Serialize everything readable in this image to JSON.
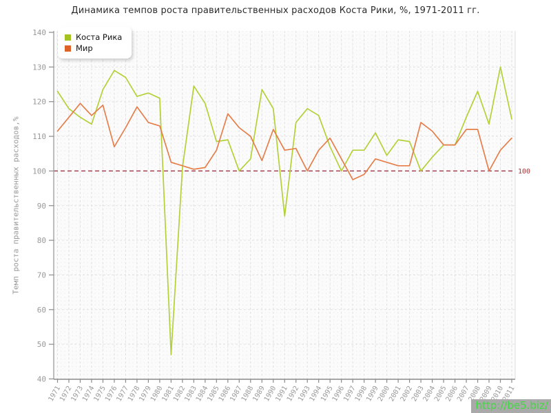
{
  "title": "Динамика темпов роста правительственных расходов Коста Рики, %, 1971-2011 гг.",
  "watermark": {
    "text": "http://be5.biz/",
    "bg_color": "#a9a9a9",
    "text_color": "#3edc3e"
  },
  "chart_data": {
    "type": "line",
    "title": "Динамика темпов роста правительственных расходов Коста Рики, %, 1971-2011 гг.",
    "xlabel": "",
    "ylabel": "Темп роста правительственных расходов,%",
    "ylim": [
      40,
      140
    ],
    "yticks": [
      40,
      50,
      60,
      70,
      80,
      90,
      100,
      110,
      120,
      130,
      140
    ],
    "grid": true,
    "legend_position": "top-left",
    "reference_line": {
      "value": 100,
      "label": "100",
      "color": "#9b2335",
      "label_color": "#a83030"
    },
    "categories": [
      "1971",
      "1972",
      "1973",
      "1974",
      "1975",
      "1976",
      "1977",
      "1978",
      "1979",
      "1980",
      "1981",
      "1982",
      "1983",
      "1984",
      "1985",
      "1986",
      "1987",
      "1988",
      "1989",
      "1990",
      "1991",
      "1992",
      "1993",
      "1994",
      "1995",
      "1996",
      "1997",
      "1998",
      "1999",
      "2000",
      "2001",
      "2002",
      "2003",
      "2004",
      "2005",
      "2006",
      "2007",
      "2008",
      "2009",
      "2010",
      "2011"
    ],
    "series": [
      {
        "name": "Коста Рика",
        "line_color": "#b3d137",
        "swatch_color": "#a4c322",
        "values": [
          123,
          118,
          115.5,
          113.5,
          123.5,
          129,
          127,
          121.5,
          122.5,
          121,
          47,
          101,
          124.5,
          119.5,
          108.5,
          109,
          100,
          103.5,
          123.5,
          118,
          87,
          114,
          118,
          116,
          107,
          100,
          106,
          106,
          111,
          104.5,
          109,
          108.5,
          100,
          104,
          107.5,
          107.5,
          115.5,
          123,
          113.5,
          130,
          115
        ]
      },
      {
        "name": "Мир",
        "line_color": "#e57e49",
        "swatch_color": "#dc6227",
        "values": [
          111.5,
          115.5,
          119.5,
          116,
          119,
          107,
          112.5,
          118.5,
          114,
          113,
          102.5,
          101.5,
          100.5,
          101,
          106,
          116.5,
          112.5,
          110,
          103,
          112,
          106,
          106.5,
          100,
          106,
          109.5,
          103.5,
          97.5,
          99,
          103.5,
          102.5,
          101.5,
          101.5,
          114,
          111.5,
          107.5,
          107.5,
          112,
          112,
          100,
          106,
          109.5
        ]
      }
    ]
  }
}
